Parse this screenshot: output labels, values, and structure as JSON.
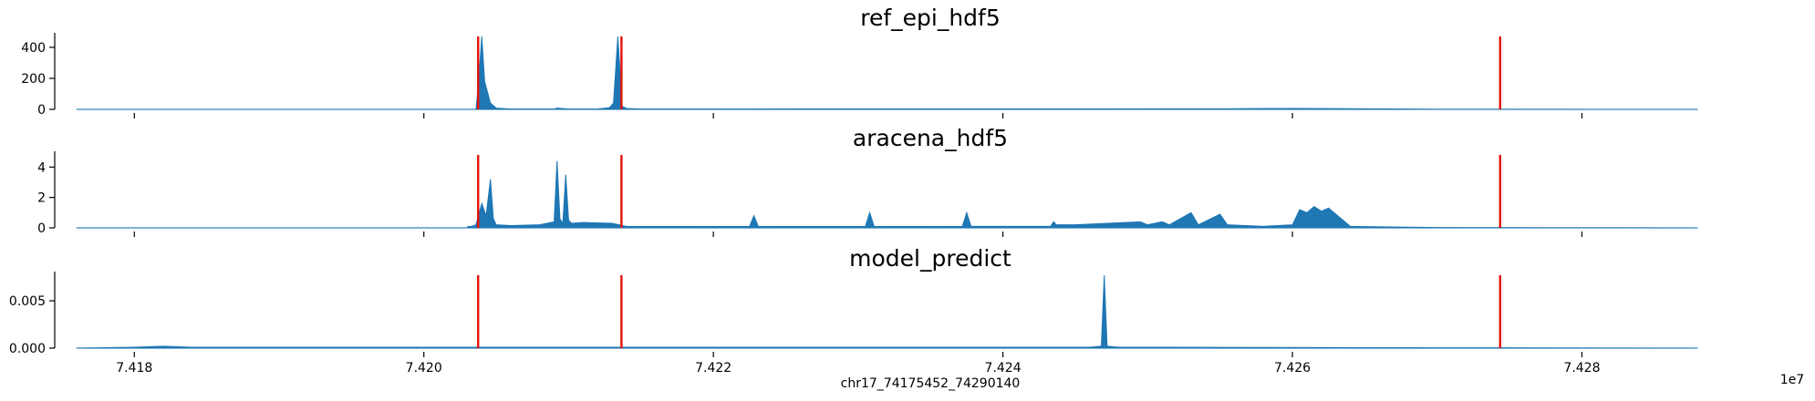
{
  "chart_data": {
    "type": "area",
    "xlabel": "chr17_74175452_74290140",
    "x_offset_text": "1e7",
    "x_ticks": [
      7.418,
      7.42,
      7.422,
      7.424,
      7.426,
      7.428
    ],
    "x_tick_labels": [
      "7.418",
      "7.420",
      "7.422",
      "7.424",
      "7.426",
      "7.428"
    ],
    "xlim": [
      7.41745,
      7.42898
    ],
    "marker_lines": [
      7.420375,
      7.421365,
      7.427435
    ],
    "colors": {
      "fill": "#1f77b4",
      "marker": "#e3120b"
    },
    "panels": [
      {
        "title": "ref_epi_hdf5",
        "ylim": [
          0,
          470
        ],
        "y_ticks": [
          0,
          200,
          400
        ],
        "y_tick_labels": [
          "0",
          "200",
          "400"
        ],
        "series": {
          "x": [
            7.4176,
            7.42,
            7.42036,
            7.42038,
            7.4204,
            7.42042,
            7.42046,
            7.4205,
            7.4206,
            7.4209,
            7.42092,
            7.421,
            7.4212,
            7.42128,
            7.42131,
            7.42134,
            7.42137,
            7.4214,
            7.4215,
            7.423,
            7.4245,
            7.4255,
            7.426,
            7.4262,
            7.427,
            7.4288
          ],
          "y": [
            0,
            0,
            0,
            200,
            470,
            180,
            40,
            8,
            2,
            2,
            8,
            2,
            3,
            10,
            40,
            470,
            20,
            6,
            2,
            3,
            3,
            4,
            6,
            5,
            1,
            0
          ]
        }
      },
      {
        "title": "aracena_hdf5",
        "ylim": [
          0,
          4.8
        ],
        "y_ticks": [
          0,
          2,
          4
        ],
        "y_tick_labels": [
          "0",
          "2",
          "4"
        ],
        "series": {
          "x": [
            7.4176,
            7.4203,
            7.42036,
            7.4204,
            7.42043,
            7.42046,
            7.42048,
            7.4205,
            7.4206,
            7.4208,
            7.4209,
            7.42092,
            7.42094,
            7.42096,
            7.42098,
            7.421,
            7.42102,
            7.4211,
            7.4213,
            7.4214,
            7.422,
            7.42225,
            7.42228,
            7.42231,
            7.423,
            7.42305,
            7.42308,
            7.42311,
            7.4236,
            7.42372,
            7.42375,
            7.42378,
            7.424,
            7.42433,
            7.42435,
            7.42437,
            7.4245,
            7.42495,
            7.425,
            7.4251,
            7.42515,
            7.4253,
            7.42535,
            7.4255,
            7.42555,
            7.4258,
            7.426,
            7.42605,
            7.4261,
            7.42615,
            7.4262,
            7.42625,
            7.4263,
            7.4264,
            7.427,
            7.4288
          ],
          "y": [
            0,
            0,
            0.2,
            1.6,
            0.8,
            3.2,
            0.6,
            0.2,
            0.15,
            0.2,
            0.4,
            4.4,
            0.6,
            0.3,
            3.5,
            0.5,
            0.3,
            0.35,
            0.3,
            0.1,
            0.05,
            0.1,
            0.8,
            0.1,
            0.05,
            0.1,
            1.0,
            0.1,
            0.05,
            0.1,
            1.0,
            0.1,
            0.1,
            0.1,
            0.4,
            0.2,
            0.2,
            0.4,
            0.2,
            0.4,
            0.2,
            1.0,
            0.2,
            0.9,
            0.2,
            0.1,
            0.2,
            1.2,
            1.0,
            1.4,
            1.1,
            1.3,
            0.9,
            0.1,
            0.02,
            0
          ],
          "band_baseline": [
            7.4203,
            7.4264,
            0.12
          ]
        }
      },
      {
        "title": "model_predict",
        "ylim": [
          0,
          0.0077
        ],
        "y_ticks": [
          0.0,
          0.005
        ],
        "y_tick_labels": [
          "0.000",
          "0.005"
        ],
        "series": {
          "x": [
            7.4176,
            7.418,
            7.4182,
            7.4184,
            7.42,
            7.4246,
            7.42468,
            7.4247,
            7.42472,
            7.4248,
            7.4288
          ],
          "y": [
            0,
            0.0001,
            0.0002,
            0.0001,
            0.0001,
            0.0001,
            0.0002,
            0.0077,
            0.0002,
            0.0001,
            0
          ]
        }
      }
    ]
  }
}
